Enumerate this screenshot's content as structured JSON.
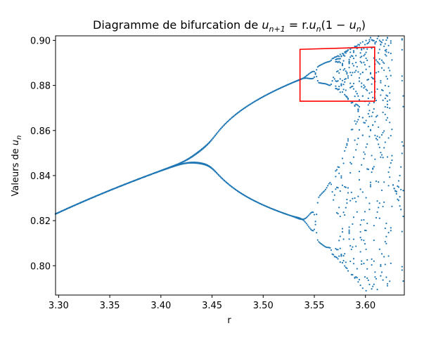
{
  "chart_data": {
    "type": "scatter",
    "title_prefix": "Diagramme de bifurcation de ",
    "title_formula": {
      "lhs_base": "u",
      "lhs_sub": "n+1",
      "eq": " = r.",
      "mid_base": "u",
      "mid_sub": "n",
      "tail_open": "(1 − ",
      "tail_base": "u",
      "tail_sub": "n",
      "tail_close": ")"
    },
    "xlabel": "r",
    "ylabel_prefix": "Valeurs de ",
    "ylabel_var": "u",
    "ylabel_sub": "n",
    "xlim": [
      3.297,
      3.638
    ],
    "ylim": [
      0.787,
      0.902
    ],
    "x_ticks": [
      "3.30",
      "3.35",
      "3.40",
      "3.45",
      "3.50",
      "3.55",
      "3.60"
    ],
    "y_ticks": [
      "0.80",
      "0.82",
      "0.84",
      "0.86",
      "0.88",
      "0.90"
    ],
    "series_color": "#1f77b4",
    "highlight_color": "#ff0000",
    "highlight_box": {
      "r_min": 3.536,
      "r_max": 3.609,
      "u_min": 0.873,
      "u_max_left": 0.896,
      "u_max_right": 0.897
    },
    "branch_points": [
      {
        "r": 3.297,
        "upper": 0.823,
        "lower": 0.823
      },
      {
        "r": 3.35,
        "upper": 0.834,
        "lower": 0.834
      },
      {
        "r": 3.4,
        "upper": 0.842,
        "lower": 0.842
      },
      {
        "r": 3.43,
        "upper": 0.846,
        "lower": 0.845
      },
      {
        "r": 3.45,
        "upper": 0.849,
        "lower": 0.843
      },
      {
        "r": 3.47,
        "upper": 0.865,
        "lower": 0.835
      },
      {
        "r": 3.5,
        "upper": 0.875,
        "lower": 0.827
      },
      {
        "r": 3.54,
        "upper": 0.883,
        "lower": 0.821
      },
      {
        "r": 3.56,
        "upper": 0.888,
        "lower": 0.815
      }
    ],
    "chaos_start_r": 3.57
  }
}
